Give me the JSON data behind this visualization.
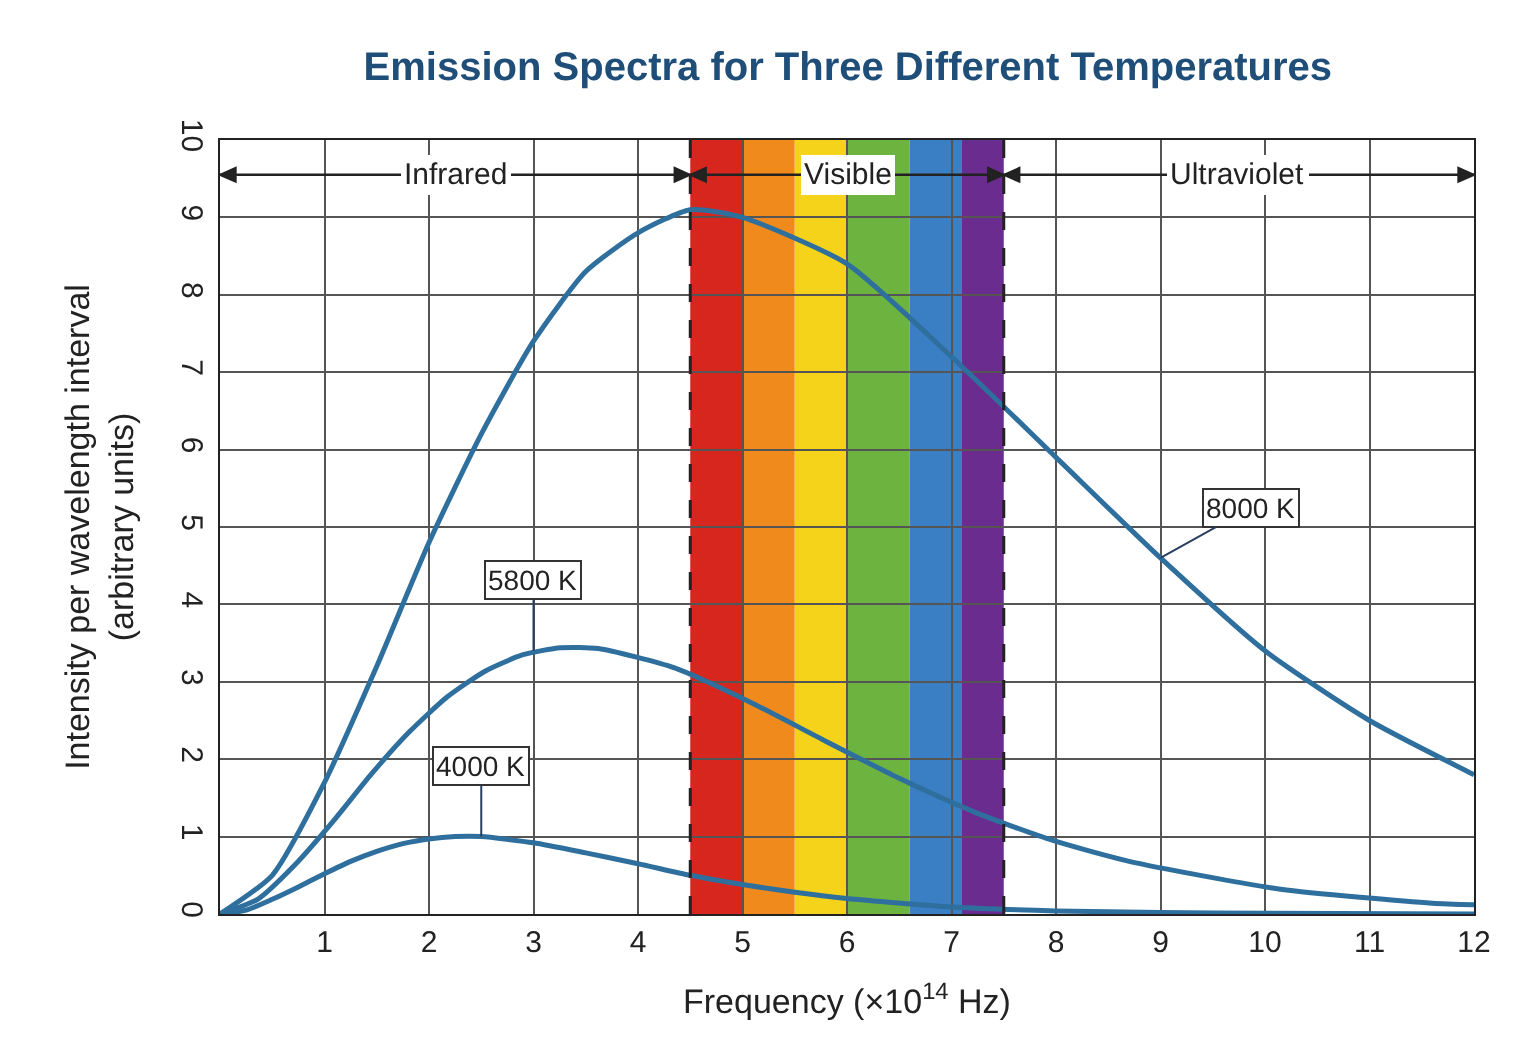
{
  "chart_data": {
    "type": "line",
    "title": "Emission Spectra for Three Different Temperatures",
    "xlabel": "Frequency (×10$^{14}$ Hz)",
    "ylabel": "Intensity per wavelength interval\n(arbitrary units)",
    "xlim": [
      0,
      12
    ],
    "ylim": [
      0,
      10
    ],
    "xticks": [
      {
        "value": 0,
        "label": null
      },
      1,
      2,
      3,
      4,
      5,
      6,
      7,
      8,
      9,
      10,
      11,
      12
    ],
    "yticks": [
      0,
      1,
      2,
      3,
      4,
      5,
      6,
      7,
      8,
      9,
      10
    ],
    "grid": true,
    "marker": "none",
    "line_style": "solid",
    "series": [
      {
        "color": "#2e6f9e",
        "x": [
          0,
          0.5,
          1,
          1.5,
          2,
          2.5,
          3,
          3.5,
          4,
          4.5,
          5,
          6,
          7,
          8,
          9,
          10,
          11,
          12
        ],
        "values": [
          0,
          0.5,
          1.7,
          3.2,
          4.8,
          6.2,
          7.4,
          8.3,
          8.8,
          9.1,
          9.0,
          8.4,
          7.2,
          5.9,
          4.6,
          3.4,
          2.5,
          1.8
        ]
      },
      {
        "color": "#2e6f9e",
        "x": [
          0,
          0.36,
          0.72,
          1.09,
          1.45,
          1.81,
          2.17,
          2.54,
          2.9,
          3.26,
          3.62,
          4.35,
          5.07,
          5.8,
          6.52,
          7.25,
          7.97,
          8.7,
          10.15,
          11.6,
          12
        ],
        "values": [
          0,
          0.19,
          0.64,
          1.21,
          1.81,
          2.35,
          2.8,
          3.14,
          3.35,
          3.44,
          3.43,
          3.18,
          2.74,
          2.23,
          1.74,
          1.3,
          0.95,
          0.68,
          0.32,
          0.14,
          0.12
        ]
      },
      {
        "color": "#2e6f9e",
        "x": [
          0,
          0.25,
          0.5,
          0.75,
          1,
          1.25,
          1.5,
          1.75,
          2,
          2.25,
          2.5,
          3,
          3.5,
          4,
          4.5,
          5,
          5.5,
          6,
          7,
          8,
          9,
          10,
          12
        ],
        "values": [
          0,
          0.05,
          0.19,
          0.35,
          0.52,
          0.68,
          0.81,
          0.91,
          0.97,
          1.0,
          1.0,
          0.92,
          0.79,
          0.65,
          0.5,
          0.38,
          0.28,
          0.2,
          0.09,
          0.04,
          0.02,
          0.01,
          0
        ]
      }
    ],
    "bands": [
      {
        "axis": "x",
        "from": 4.5,
        "to": 5.0,
        "color": "#d7261e"
      },
      {
        "axis": "x",
        "from": 5.0,
        "to": 5.5,
        "color": "#f08a1c"
      },
      {
        "axis": "x",
        "from": 5.5,
        "to": 6.0,
        "color": "#f5d31a"
      },
      {
        "axis": "x",
        "from": 6.0,
        "to": 6.6,
        "color": "#6db33f"
      },
      {
        "axis": "x",
        "from": 6.6,
        "to": 7.1,
        "color": "#3a7fc4"
      },
      {
        "axis": "x",
        "from": 7.1,
        "to": 7.5,
        "color": "#6a2c8f"
      }
    ],
    "ref_lines": [
      {
        "axis": "x",
        "value": 4.5,
        "line_style": "dashed",
        "color": "#222222"
      },
      {
        "axis": "x",
        "value": 7.5,
        "line_style": "dashed",
        "color": "#222222"
      }
    ],
    "annotations": [
      "Infrared",
      "Visible",
      "Ultraviolet",
      {
        "text": "8000 K",
        "x": 9,
        "y": 4.6
      },
      {
        "text": "5800 K",
        "x": 3,
        "y": 3.4
      },
      {
        "text": "4000 K",
        "x": 2.5,
        "y": 1.0
      }
    ]
  }
}
